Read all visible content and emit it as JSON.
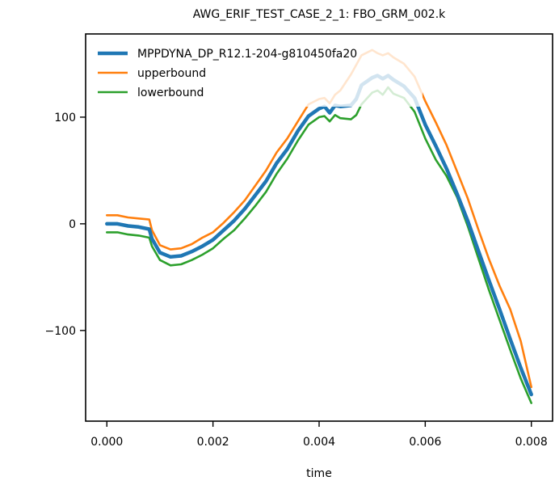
{
  "chart_data": {
    "type": "line",
    "title": "AWG_ERIF_TEST_CASE_2_1: FBO_GRM_002.k",
    "xlabel": "time",
    "ylabel": "",
    "xlim": [
      -0.0004,
      0.0084
    ],
    "ylim": [
      -185,
      178
    ],
    "xticks": [
      0.0,
      0.002,
      0.004,
      0.006,
      0.008
    ],
    "xtick_labels": [
      "0.000",
      "0.002",
      "0.004",
      "0.006",
      "0.008"
    ],
    "yticks": [
      -100,
      0,
      100
    ],
    "ytick_labels": [
      "−100",
      "0",
      "100"
    ],
    "grid": false,
    "legend_position": "top-left",
    "series": [
      {
        "name": "MPPDYNA_DP_R12.1-204-g810450fa20",
        "color": "#1f77b4",
        "x": [
          0.0,
          0.0002,
          0.0004,
          0.0006,
          0.0008,
          0.00085,
          0.001,
          0.0012,
          0.0014,
          0.0016,
          0.0018,
          0.002,
          0.0022,
          0.0024,
          0.0026,
          0.0028,
          0.003,
          0.0032,
          0.0034,
          0.0036,
          0.0038,
          0.004,
          0.0041,
          0.0042,
          0.0043,
          0.0044,
          0.0046,
          0.0047,
          0.0048,
          0.005,
          0.0051,
          0.0052,
          0.0053,
          0.0054,
          0.0056,
          0.0058,
          0.006,
          0.0062,
          0.0064,
          0.0066,
          0.0068,
          0.007,
          0.0072,
          0.0074,
          0.0076,
          0.0078,
          0.008
        ],
        "y": [
          0,
          0,
          -2,
          -3,
          -5,
          -14,
          -27,
          -31,
          -30,
          -26,
          -21,
          -15,
          -6,
          3,
          14,
          27,
          40,
          57,
          70,
          87,
          101,
          108,
          110,
          104,
          111,
          110,
          111,
          117,
          130,
          137,
          139,
          136,
          139,
          135,
          129,
          118,
          93,
          73,
          52,
          28,
          3,
          -25,
          -53,
          -80,
          -108,
          -135,
          -160
        ]
      },
      {
        "name": "upperbound",
        "color": "#ff7f0e",
        "x": [
          0.0,
          0.0002,
          0.0004,
          0.0006,
          0.0008,
          0.00085,
          0.001,
          0.0012,
          0.0014,
          0.0016,
          0.0018,
          0.002,
          0.0022,
          0.0024,
          0.0026,
          0.0028,
          0.003,
          0.0032,
          0.0034,
          0.0036,
          0.0038,
          0.004,
          0.0041,
          0.0042,
          0.0043,
          0.0044,
          0.0046,
          0.0047,
          0.0048,
          0.005,
          0.0051,
          0.0052,
          0.0053,
          0.0054,
          0.0056,
          0.0058,
          0.006,
          0.0062,
          0.0064,
          0.0066,
          0.0068,
          0.007,
          0.0072,
          0.0074,
          0.0076,
          0.0078,
          0.008
        ],
        "y": [
          8,
          8,
          6,
          5,
          4,
          -6,
          -20,
          -24,
          -23,
          -19,
          -13,
          -8,
          1,
          11,
          22,
          36,
          50,
          67,
          80,
          96,
          112,
          117,
          118,
          113,
          121,
          125,
          140,
          149,
          158,
          163,
          160,
          158,
          160,
          156,
          150,
          138,
          115,
          95,
          74,
          49,
          24,
          -5,
          -33,
          -58,
          -80,
          -110,
          -153
        ]
      },
      {
        "name": "lowerbound",
        "color": "#2ca02c",
        "x": [
          0.0,
          0.0002,
          0.0004,
          0.0006,
          0.0008,
          0.00085,
          0.001,
          0.0012,
          0.0014,
          0.0016,
          0.0018,
          0.002,
          0.0022,
          0.0024,
          0.0026,
          0.0028,
          0.003,
          0.0032,
          0.0034,
          0.0036,
          0.0038,
          0.004,
          0.0041,
          0.0042,
          0.0043,
          0.0044,
          0.0046,
          0.0047,
          0.0048,
          0.005,
          0.0051,
          0.0052,
          0.0053,
          0.0054,
          0.0056,
          0.0058,
          0.006,
          0.0062,
          0.0064,
          0.0066,
          0.0068,
          0.007,
          0.0072,
          0.0074,
          0.0076,
          0.0078,
          0.008
        ],
        "y": [
          -8,
          -8,
          -10,
          -11,
          -13,
          -21,
          -34,
          -39,
          -38,
          -34,
          -29,
          -23,
          -14,
          -6,
          5,
          17,
          30,
          47,
          61,
          78,
          93,
          100,
          101,
          96,
          102,
          99,
          98,
          102,
          112,
          123,
          125,
          121,
          128,
          122,
          118,
          105,
          80,
          60,
          45,
          25,
          -2,
          -32,
          -62,
          -90,
          -118,
          -145,
          -168
        ]
      }
    ]
  }
}
